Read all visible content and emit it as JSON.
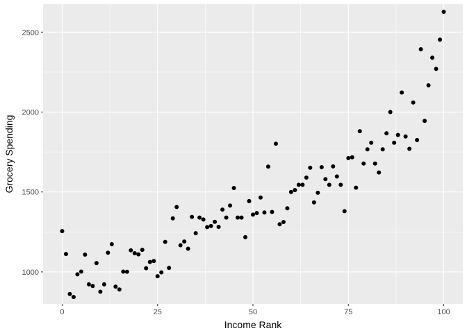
{
  "chart_data": {
    "type": "scatter",
    "xlabel": "Income Rank",
    "ylabel": "Grocery Spending",
    "xlim": [
      -5,
      105
    ],
    "ylim": [
      800,
      2675
    ],
    "grid": true,
    "colors": {
      "panel": "#EBEBEB",
      "grid": "#FFFFFF",
      "point": "#000000",
      "tick": "#333333"
    },
    "x_ticks": [
      0,
      25,
      50,
      75,
      100
    ],
    "x_tick_labels": [
      "0",
      "25",
      "50",
      "75",
      "100"
    ],
    "y_ticks": [
      1000,
      1500,
      2000,
      2500
    ],
    "y_tick_labels": [
      "1000",
      "1500",
      "2000",
      "2500"
    ],
    "points": [
      [
        0,
        1255
      ],
      [
        1,
        1112
      ],
      [
        2,
        862
      ],
      [
        3,
        843
      ],
      [
        4,
        985
      ],
      [
        5,
        1002
      ],
      [
        6,
        1108
      ],
      [
        7,
        922
      ],
      [
        8,
        912
      ],
      [
        9,
        1055
      ],
      [
        10,
        876
      ],
      [
        11,
        922
      ],
      [
        12,
        1120
      ],
      [
        13,
        1173
      ],
      [
        14,
        908
      ],
      [
        15,
        890
      ],
      [
        16,
        1002
      ],
      [
        17,
        1001
      ],
      [
        18,
        1135
      ],
      [
        19,
        1117
      ],
      [
        20,
        1110
      ],
      [
        21,
        1138
      ],
      [
        22,
        1023
      ],
      [
        23,
        1062
      ],
      [
        24,
        1068
      ],
      [
        25,
        973
      ],
      [
        26,
        997
      ],
      [
        27,
        1188
      ],
      [
        28,
        1025
      ],
      [
        29,
        1335
      ],
      [
        30,
        1406
      ],
      [
        31,
        1167
      ],
      [
        32,
        1190
      ],
      [
        33,
        1145
      ],
      [
        34,
        1344
      ],
      [
        35,
        1242
      ],
      [
        36,
        1340
      ],
      [
        37,
        1328
      ],
      [
        38,
        1280
      ],
      [
        39,
        1287
      ],
      [
        40,
        1313
      ],
      [
        41,
        1282
      ],
      [
        42,
        1390
      ],
      [
        43,
        1340
      ],
      [
        44,
        1415
      ],
      [
        45,
        1525
      ],
      [
        46,
        1340
      ],
      [
        47,
        1340
      ],
      [
        48,
        1217
      ],
      [
        49,
        1443
      ],
      [
        50,
        1358
      ],
      [
        51,
        1368
      ],
      [
        52,
        1465
      ],
      [
        53,
        1372
      ],
      [
        54,
        1659
      ],
      [
        55,
        1375
      ],
      [
        56,
        1802
      ],
      [
        57,
        1298
      ],
      [
        58,
        1312
      ],
      [
        59,
        1398
      ],
      [
        60,
        1500
      ],
      [
        61,
        1512
      ],
      [
        62,
        1545
      ],
      [
        63,
        1545
      ],
      [
        64,
        1590
      ],
      [
        65,
        1652
      ],
      [
        66,
        1435
      ],
      [
        67,
        1495
      ],
      [
        68,
        1655
      ],
      [
        69,
        1580
      ],
      [
        70,
        1545
      ],
      [
        71,
        1660
      ],
      [
        72,
        1597
      ],
      [
        73,
        1545
      ],
      [
        74,
        1380
      ],
      [
        75,
        1712
      ],
      [
        76,
        1717
      ],
      [
        77,
        1527
      ],
      [
        78,
        1880
      ],
      [
        79,
        1678
      ],
      [
        80,
        1767
      ],
      [
        81,
        1808
      ],
      [
        82,
        1678
      ],
      [
        83,
        1622
      ],
      [
        84,
        1767
      ],
      [
        85,
        1867
      ],
      [
        86,
        2000
      ],
      [
        87,
        1808
      ],
      [
        88,
        1857
      ],
      [
        89,
        2122
      ],
      [
        90,
        1847
      ],
      [
        91,
        1770
      ],
      [
        92,
        2060
      ],
      [
        93,
        1825
      ],
      [
        94,
        2393
      ],
      [
        95,
        1945
      ],
      [
        96,
        2167
      ],
      [
        97,
        2340
      ],
      [
        98,
        2270
      ],
      [
        99,
        2453
      ],
      [
        100,
        2627
      ]
    ]
  }
}
